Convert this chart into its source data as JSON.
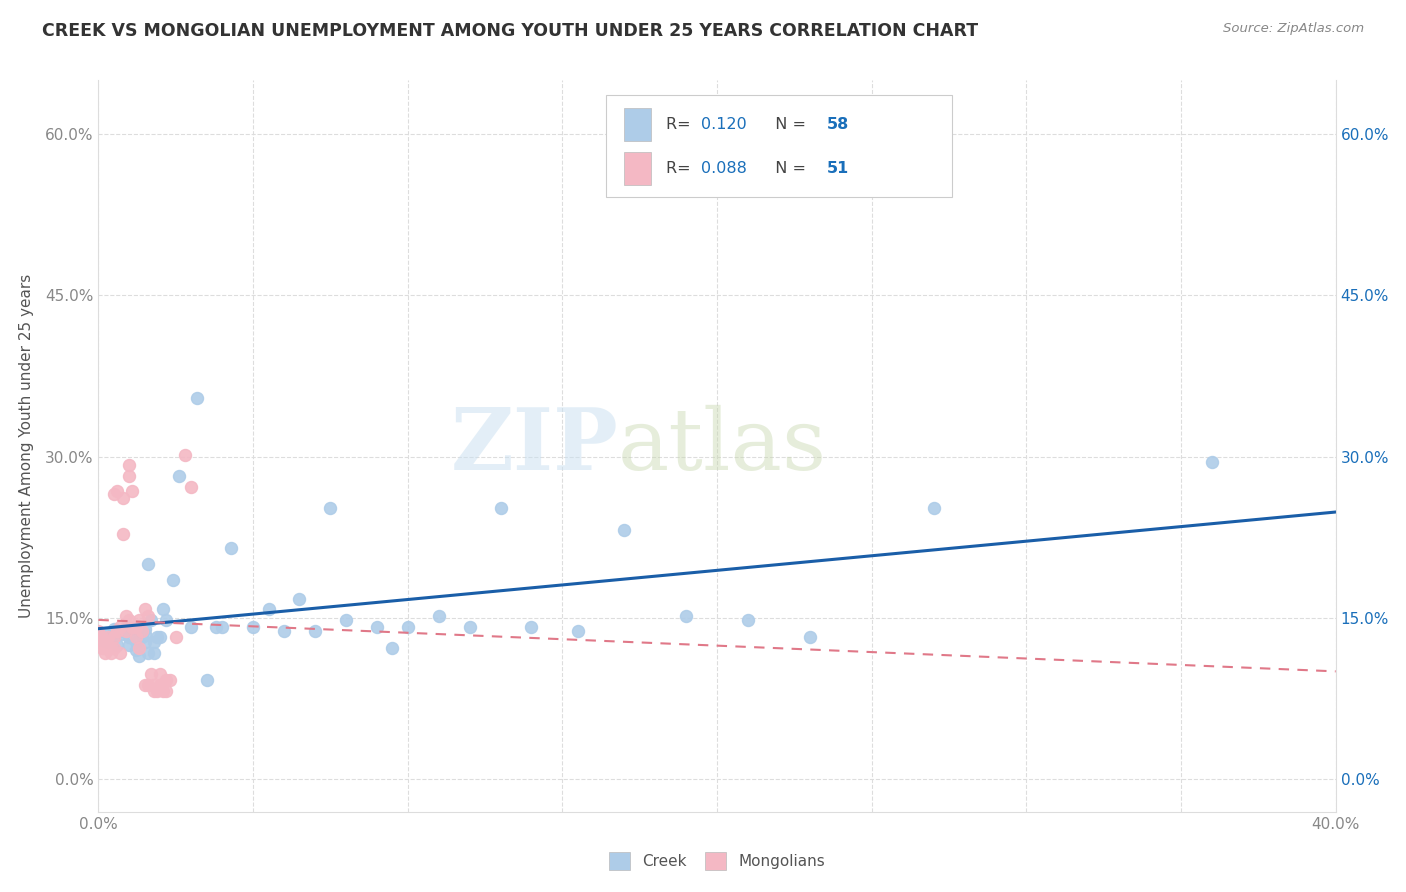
{
  "title": "CREEK VS MONGOLIAN UNEMPLOYMENT AMONG YOUTH UNDER 25 YEARS CORRELATION CHART",
  "source": "Source: ZipAtlas.com",
  "ylabel": "Unemployment Among Youth under 25 years",
  "xlim": [
    0.0,
    0.4
  ],
  "ylim": [
    -0.03,
    0.65
  ],
  "yticks": [
    0.0,
    0.15,
    0.3,
    0.45,
    0.6
  ],
  "ytick_labels": [
    "0.0%",
    "15.0%",
    "30.0%",
    "45.0%",
    "60.0%"
  ],
  "creek_color": "#aecce8",
  "mongolian_color": "#f4b8c4",
  "creek_line_color": "#1a5ea8",
  "mongolian_line_color": "#e07888",
  "legend_label_creek": "Creek",
  "legend_label_mongolian": "Mongolians",
  "R_creek": "0.120",
  "N_creek": "58",
  "R_mongolian": "0.088",
  "N_mongolian": "51",
  "watermark_zip": "ZIP",
  "watermark_atlas": "atlas",
  "creek_x": [
    0.001,
    0.002,
    0.003,
    0.004,
    0.005,
    0.006,
    0.007,
    0.008,
    0.009,
    0.01,
    0.01,
    0.011,
    0.012,
    0.012,
    0.013,
    0.013,
    0.014,
    0.015,
    0.015,
    0.015,
    0.016,
    0.016,
    0.017,
    0.018,
    0.018,
    0.019,
    0.02,
    0.021,
    0.022,
    0.024,
    0.026,
    0.03,
    0.032,
    0.035,
    0.038,
    0.04,
    0.043,
    0.05,
    0.055,
    0.06,
    0.065,
    0.07,
    0.075,
    0.08,
    0.09,
    0.095,
    0.1,
    0.11,
    0.12,
    0.13,
    0.14,
    0.155,
    0.17,
    0.19,
    0.21,
    0.23,
    0.27,
    0.36
  ],
  "creek_y": [
    0.13,
    0.135,
    0.128,
    0.132,
    0.14,
    0.125,
    0.138,
    0.135,
    0.142,
    0.125,
    0.132,
    0.14,
    0.128,
    0.12,
    0.14,
    0.115,
    0.132,
    0.128,
    0.135,
    0.14,
    0.2,
    0.118,
    0.148,
    0.128,
    0.118,
    0.132,
    0.132,
    0.158,
    0.148,
    0.185,
    0.282,
    0.142,
    0.355,
    0.092,
    0.142,
    0.142,
    0.215,
    0.142,
    0.158,
    0.138,
    0.168,
    0.138,
    0.252,
    0.148,
    0.142,
    0.122,
    0.142,
    0.152,
    0.142,
    0.252,
    0.142,
    0.138,
    0.232,
    0.152,
    0.148,
    0.132,
    0.252,
    0.295
  ],
  "mongolian_x": [
    0.0,
    0.0,
    0.0,
    0.001,
    0.001,
    0.001,
    0.002,
    0.002,
    0.002,
    0.003,
    0.003,
    0.004,
    0.004,
    0.005,
    0.005,
    0.005,
    0.006,
    0.006,
    0.007,
    0.007,
    0.008,
    0.008,
    0.009,
    0.009,
    0.01,
    0.01,
    0.01,
    0.011,
    0.011,
    0.012,
    0.012,
    0.013,
    0.013,
    0.014,
    0.015,
    0.015,
    0.016,
    0.016,
    0.017,
    0.018,
    0.018,
    0.019,
    0.02,
    0.02,
    0.021,
    0.022,
    0.022,
    0.023,
    0.025,
    0.028,
    0.03
  ],
  "mongolian_y": [
    0.132,
    0.138,
    0.128,
    0.122,
    0.132,
    0.128,
    0.118,
    0.128,
    0.122,
    0.132,
    0.122,
    0.118,
    0.122,
    0.132,
    0.122,
    0.265,
    0.268,
    0.138,
    0.142,
    0.118,
    0.262,
    0.228,
    0.152,
    0.138,
    0.148,
    0.292,
    0.282,
    0.142,
    0.268,
    0.132,
    0.142,
    0.148,
    0.122,
    0.138,
    0.158,
    0.088,
    0.088,
    0.152,
    0.098,
    0.082,
    0.088,
    0.082,
    0.088,
    0.098,
    0.082,
    0.092,
    0.082,
    0.092,
    0.132,
    0.302,
    0.272
  ]
}
